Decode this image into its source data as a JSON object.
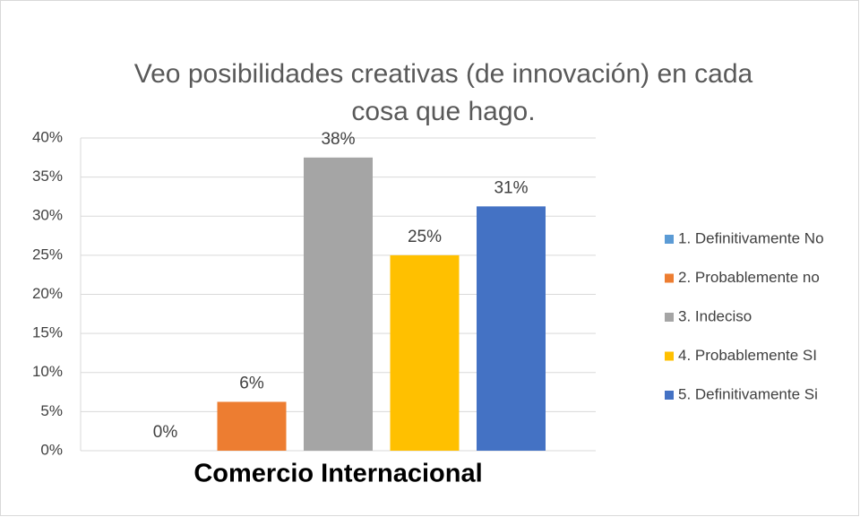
{
  "chart_data": {
    "type": "bar",
    "title": "Veo posibilidades creativas (de innovación) en cada cosa que hago.",
    "categories": [
      "Comercio Internacional"
    ],
    "series": [
      {
        "name": "1. Definitivamente No",
        "color": "#5b9bd5",
        "values": [
          0
        ],
        "value_labels": [
          "0%"
        ]
      },
      {
        "name": "2. Probablemente no",
        "color": "#ed7d31",
        "values": [
          6.25
        ],
        "value_labels": [
          "6%"
        ]
      },
      {
        "name": "3. Indeciso",
        "color": "#a5a5a5",
        "values": [
          37.5
        ],
        "value_labels": [
          "38%"
        ]
      },
      {
        "name": "4. Probablemente SI",
        "color": "#ffc000",
        "values": [
          25
        ],
        "value_labels": [
          "25%"
        ]
      },
      {
        "name": "5. Definitivamente Si",
        "color": "#4472c4",
        "values": [
          31.25
        ],
        "value_labels": [
          "31%"
        ]
      }
    ],
    "ylim": [
      0,
      40
    ],
    "yticks": [
      {
        "value": 0,
        "label": "0%"
      },
      {
        "value": 5,
        "label": "5%"
      },
      {
        "value": 10,
        "label": "10%"
      },
      {
        "value": 15,
        "label": "15%"
      },
      {
        "value": 20,
        "label": "20%"
      },
      {
        "value": 25,
        "label": "25%"
      },
      {
        "value": 30,
        "label": "30%"
      },
      {
        "value": 35,
        "label": "35%"
      },
      {
        "value": 40,
        "label": "40%"
      }
    ],
    "grid": true,
    "legend": "right"
  }
}
